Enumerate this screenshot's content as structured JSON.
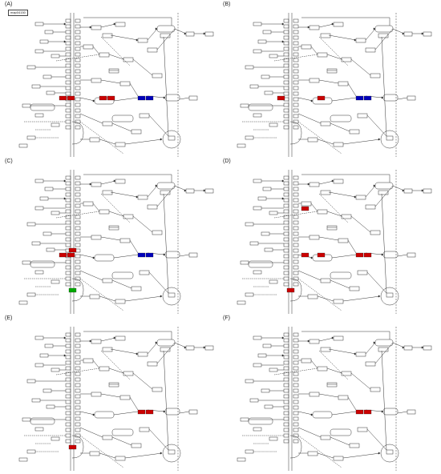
{
  "panels": [
    {
      "label": "(A)",
      "pathway_id": "map04150",
      "highlights": [
        {
          "anchor": "h1",
          "color": "#cc0000",
          "count": 2
        },
        {
          "anchor": "h2",
          "color": "#0000bb",
          "count": 2
        },
        {
          "anchor": "h3",
          "color": "#cc0000",
          "count": 2
        }
      ]
    },
    {
      "label": "(B)",
      "pathway_id": "",
      "highlights": [
        {
          "anchor": "h1",
          "color": "#cc0000",
          "count": 1
        },
        {
          "anchor": "h2",
          "color": "#0000bb",
          "count": 2
        },
        {
          "anchor": "h3",
          "color": "#cc0000",
          "count": 1
        }
      ]
    },
    {
      "label": "(C)",
      "pathway_id": "",
      "highlights": [
        {
          "anchor": "h4",
          "color": "#cc0000",
          "count": 1
        },
        {
          "anchor": "h1",
          "color": "#cc0000",
          "count": 2
        },
        {
          "anchor": "h2",
          "color": "#0000bb",
          "count": 2
        },
        {
          "anchor": "h5",
          "color": "#00aa00",
          "count": 1
        }
      ]
    },
    {
      "label": "(D)",
      "pathway_id": "",
      "highlights": [
        {
          "anchor": "h6",
          "color": "#cc0000",
          "count": 1
        },
        {
          "anchor": "h1b",
          "color": "#cc0000",
          "count": 1
        },
        {
          "anchor": "h3b",
          "color": "#cc0000",
          "count": 1
        },
        {
          "anchor": "h2",
          "color": "#cc0000",
          "count": 2
        },
        {
          "anchor": "h5",
          "color": "#cc0000",
          "count": 1
        }
      ]
    },
    {
      "label": "(E)",
      "pathway_id": "",
      "highlights": [
        {
          "anchor": "h2",
          "color": "#cc0000",
          "count": 2
        },
        {
          "anchor": "h5",
          "color": "#cc0000",
          "count": 1
        }
      ]
    },
    {
      "label": "(F)",
      "pathway_id": "",
      "highlights": [
        {
          "anchor": "h2",
          "color": "#cc0000",
          "count": 2
        }
      ]
    }
  ]
}
